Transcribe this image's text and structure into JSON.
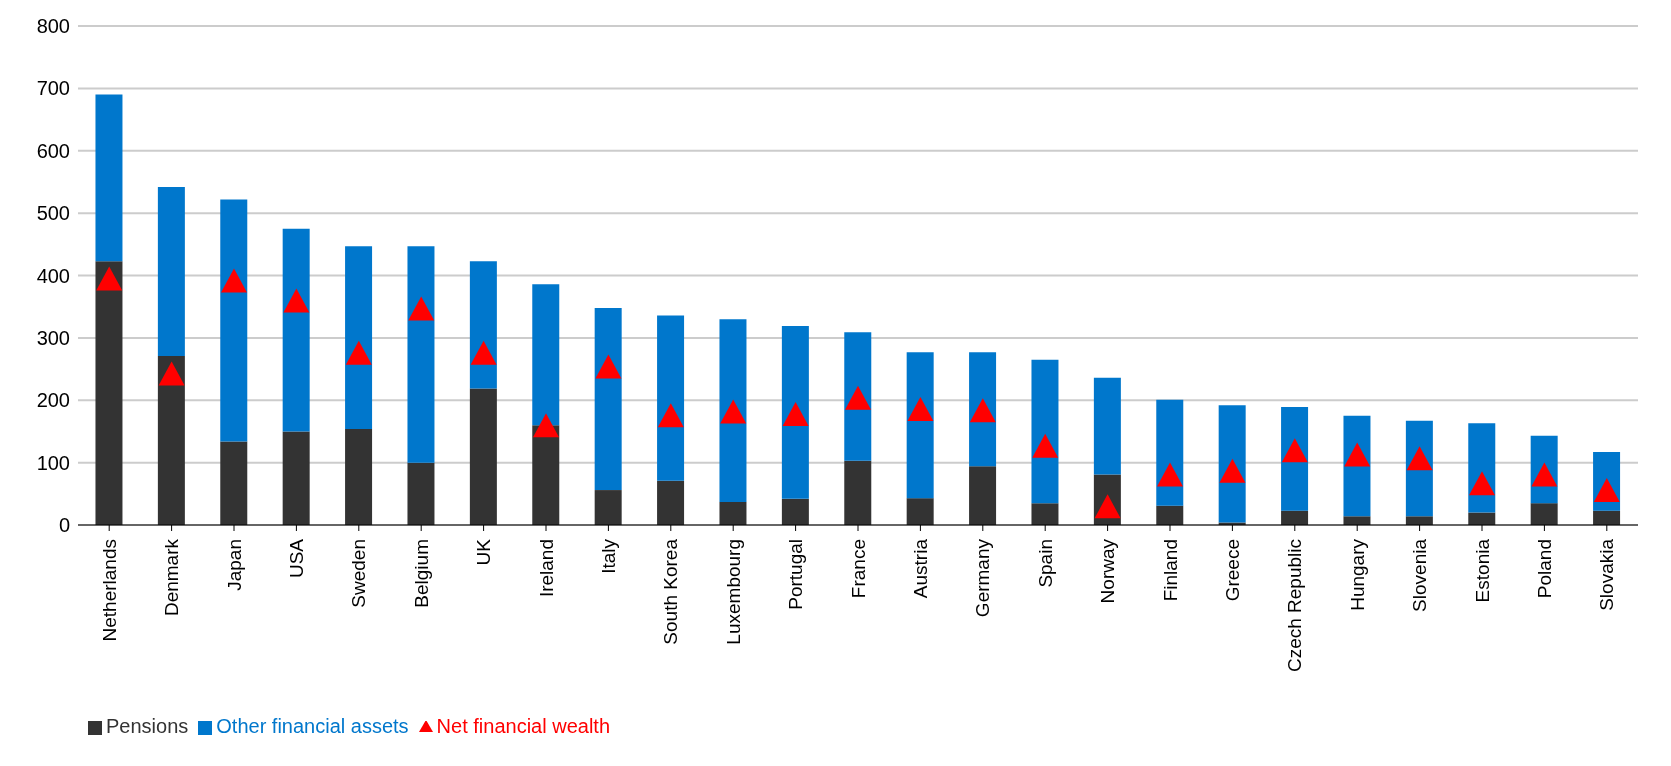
{
  "chart_data": {
    "type": "bar",
    "stacked": true,
    "categories": [
      "Netherlands",
      "Denmark",
      "Japan",
      "USA",
      "Sweden",
      "Belgium",
      "UK",
      "Ireland",
      "Italy",
      "South Korea",
      "Luxembourg",
      "Portugal",
      "France",
      "Austria",
      "Germany",
      "Spain",
      "Norway",
      "Finland",
      "Greece",
      "Czech Republic",
      "Hungary",
      "Slovenia",
      "Estonia",
      "Poland",
      "Slovakia"
    ],
    "series": [
      {
        "name": "Pensions",
        "color": "#333333",
        "values": [
          423,
          271,
          134,
          150,
          154,
          100,
          219,
          160,
          56,
          71,
          37,
          42,
          103,
          43,
          94,
          35,
          81,
          31,
          4,
          23,
          14,
          14,
          20,
          35,
          23
        ]
      },
      {
        "name": "Other financial assets",
        "color": "#0077cc",
        "values": [
          267,
          271,
          388,
          325,
          293,
          347,
          204,
          226,
          292,
          265,
          293,
          277,
          206,
          234,
          183,
          230,
          155,
          170,
          188,
          166,
          161,
          153,
          143,
          108,
          94
        ]
      },
      {
        "name": "Net financial wealth",
        "type": "scatter",
        "color": "#ff0000",
        "marker": "triangle",
        "values": [
          395,
          243,
          392,
          360,
          276,
          347,
          276,
          160,
          254,
          176,
          182,
          178,
          204,
          186,
          184,
          127,
          30,
          81,
          87,
          120,
          113,
          107,
          67,
          81,
          56
        ]
      }
    ],
    "ylim": [
      0,
      800
    ],
    "yticks": [
      0,
      100,
      200,
      300,
      400,
      500,
      600,
      700,
      800
    ],
    "grid": "y",
    "legend": "bottom left"
  }
}
